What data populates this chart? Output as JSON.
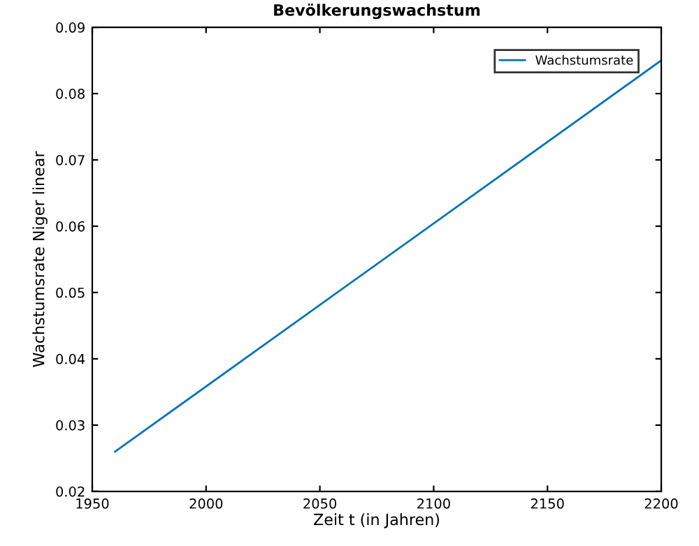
{
  "chart_data": {
    "type": "line",
    "title": "Bevölkerungswachstum",
    "xlabel": "Zeit t (in Jahren)",
    "ylabel": "Wachstumsrate Niger linear",
    "x": [
      1960,
      2200
    ],
    "series": [
      {
        "name": "Wachstumsrate",
        "color": "#0072bd",
        "values": [
          0.026,
          0.085
        ]
      }
    ],
    "xlim": [
      1950,
      2200
    ],
    "xticks": [
      1950,
      2000,
      2050,
      2100,
      2150,
      2200
    ],
    "ylim": [
      0.02,
      0.09
    ],
    "yticks": [
      0.02,
      0.03,
      0.04,
      0.05,
      0.06,
      0.07,
      0.08,
      0.09
    ],
    "grid": false,
    "legend": "top right",
    "marker": "none",
    "line_style": "solid"
  }
}
